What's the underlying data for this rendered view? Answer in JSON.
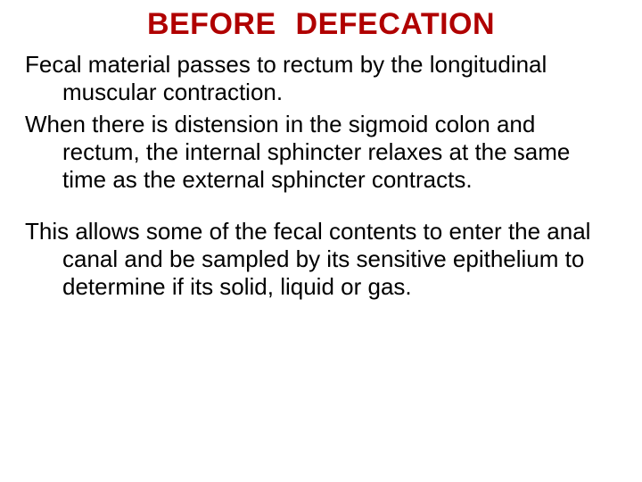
{
  "title": {
    "text": "BEFORE  DEFECATION",
    "color": "#b00000",
    "fontsize": 34,
    "weight": "bold",
    "align": "center"
  },
  "paragraphs": [
    "Fecal material passes to rectum by the longitudinal muscular contraction.",
    "When there is distension in the sigmoid colon and rectum, the internal sphincter relaxes at the same time as the external sphincter contracts.",
    "This allows some of the fecal contents to enter the anal canal and be sampled by its sensitive epithelium to determine if its solid, liquid or gas."
  ],
  "colors": {
    "title": "#b00000",
    "body_text": "#000000",
    "background": "#ffffff"
  },
  "typography": {
    "title_fontsize": 34,
    "body_fontsize": 26,
    "font_family": "Verdana"
  }
}
